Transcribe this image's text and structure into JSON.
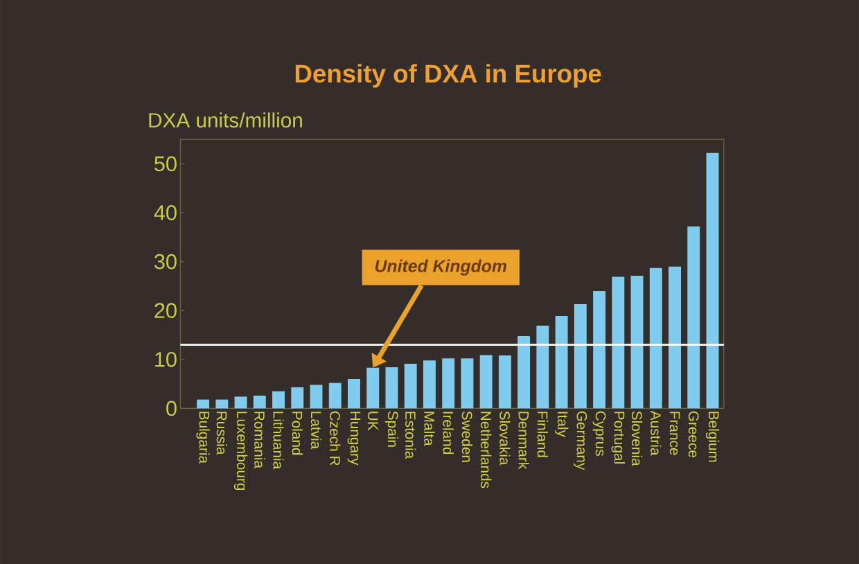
{
  "chart_data": {
    "type": "bar",
    "title": "Density of DXA in Europe",
    "ylabel": "DXA units/million",
    "categories": [
      "Bulgaria",
      "Russia",
      "Luxembourg",
      "Romania",
      "Lithuania",
      "Poland",
      "Latvia",
      "Czech R",
      "Hungary",
      "UK",
      "Spain",
      "Estonia",
      "Malta",
      "Ireland",
      "Sweden",
      "Netherlands",
      "Slovakia",
      "Denmark",
      "Finland",
      "Italy",
      "Germany",
      "Cyprus",
      "Portugal",
      "Slovenia",
      "Austria",
      "France",
      "Greece",
      "Belgium"
    ],
    "values": [
      1.8,
      1.8,
      2.4,
      2.6,
      3.5,
      4.3,
      4.8,
      5.2,
      6.0,
      8.3,
      8.4,
      9.1,
      9.8,
      10.2,
      10.2,
      10.9,
      10.8,
      14.8,
      16.9,
      18.9,
      21.3,
      24.0,
      26.9,
      27.1,
      28.7,
      29.0,
      37.2,
      52.2
    ],
    "color": "#80ccee",
    "ylim": [
      0,
      55
    ],
    "yticks": [
      0,
      10,
      20,
      30,
      40,
      50
    ],
    "ref_lines": [
      {
        "axis": "y",
        "value": 13,
        "color": "#ffffff"
      }
    ],
    "annotations": [
      {
        "text": "United Kingdom",
        "x": "UK",
        "y": 8.3
      }
    ]
  }
}
